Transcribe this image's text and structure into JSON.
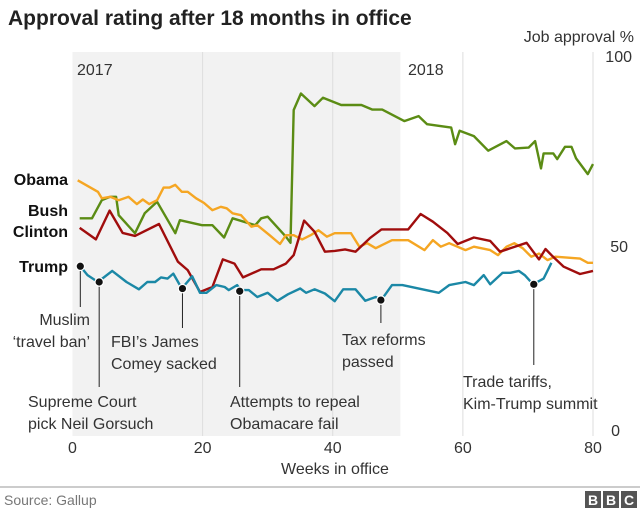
{
  "chart_data": {
    "type": "line",
    "title": "Approval rating after 18 months in office",
    "xlabel": "Weeks in office",
    "ylabel": "Job approval %",
    "xlim": [
      0,
      80
    ],
    "ylim": [
      0,
      100
    ],
    "xticks": [
      "0",
      "20",
      "40",
      "60",
      "80"
    ],
    "yticks": [
      "0",
      "50",
      "100"
    ],
    "grid": "vertical",
    "shaded_period": {
      "label": "2017",
      "from_week": 0,
      "to_week": 50.4
    },
    "period_labels": [
      "2017",
      "2018"
    ],
    "series": [
      {
        "name": "Obama",
        "color": "#f5a623",
        "points": [
          [
            0.8,
            66.6
          ],
          [
            3.9,
            63.6
          ],
          [
            4.5,
            61.9
          ],
          [
            5.8,
            62.3
          ],
          [
            7.1,
            61.4
          ],
          [
            8.6,
            62.3
          ],
          [
            9.9,
            60.4
          ],
          [
            10.8,
            61.6
          ],
          [
            11.8,
            60.4
          ],
          [
            13.0,
            61.4
          ],
          [
            14.0,
            64.7
          ],
          [
            14.9,
            64.7
          ],
          [
            15.8,
            65.4
          ],
          [
            16.8,
            63.6
          ],
          [
            17.7,
            63.6
          ],
          [
            19.0,
            61.9
          ],
          [
            20.2,
            60.7
          ],
          [
            21.5,
            58.8
          ],
          [
            22.8,
            59.7
          ],
          [
            23.7,
            59.3
          ],
          [
            24.6,
            58.0
          ],
          [
            25.9,
            57.5
          ],
          [
            27.5,
            54.5
          ],
          [
            28.4,
            54.9
          ],
          [
            30.3,
            52.3
          ],
          [
            31.9,
            50.0
          ],
          [
            32.8,
            52.3
          ],
          [
            34.0,
            52.3
          ],
          [
            35.3,
            51.2
          ],
          [
            36.6,
            52.3
          ],
          [
            37.8,
            53.6
          ],
          [
            39.1,
            51.9
          ],
          [
            40.3,
            52.8
          ],
          [
            41.6,
            52.8
          ],
          [
            42.8,
            52.8
          ],
          [
            44.1,
            49.3
          ],
          [
            45.3,
            50.2
          ],
          [
            46.6,
            48.9
          ],
          [
            49.1,
            51.0
          ],
          [
            51.6,
            51.0
          ],
          [
            54.1,
            48.4
          ],
          [
            55.4,
            51.0
          ],
          [
            56.6,
            49.3
          ],
          [
            57.9,
            50.2
          ],
          [
            60.4,
            48.4
          ],
          [
            61.7,
            49.3
          ],
          [
            64.2,
            48.4
          ],
          [
            65.4,
            47.1
          ],
          [
            66.7,
            49.3
          ],
          [
            67.9,
            50.2
          ],
          [
            69.2,
            48.9
          ],
          [
            70.5,
            46.7
          ],
          [
            71.7,
            47.5
          ],
          [
            73.0,
            45.8
          ],
          [
            74.2,
            46.7
          ],
          [
            78.0,
            46.2
          ],
          [
            79.2,
            45.1
          ],
          [
            80.0,
            45.1
          ]
        ]
      },
      {
        "name": "Bush",
        "color": "#5b8c14",
        "points": [
          [
            1.1,
            56.7
          ],
          [
            3.0,
            56.7
          ],
          [
            4.5,
            61.4
          ],
          [
            5.8,
            62.3
          ],
          [
            6.7,
            62.3
          ],
          [
            7.1,
            57.5
          ],
          [
            9.6,
            52.8
          ],
          [
            11.1,
            58.0
          ],
          [
            13.0,
            61.0
          ],
          [
            15.8,
            52.8
          ],
          [
            16.5,
            56.2
          ],
          [
            19.9,
            54.9
          ],
          [
            21.5,
            54.9
          ],
          [
            23.3,
            51.7
          ],
          [
            24.6,
            56.7
          ],
          [
            28.1,
            54.9
          ],
          [
            29.0,
            56.7
          ],
          [
            30.0,
            57.1
          ],
          [
            32.8,
            51.9
          ],
          [
            33.5,
            50.3
          ],
          [
            34.0,
            84.9
          ],
          [
            35.1,
            89.2
          ],
          [
            37.2,
            85.9
          ],
          [
            38.5,
            88.1
          ],
          [
            41.3,
            86.2
          ],
          [
            44.4,
            86.2
          ],
          [
            46.1,
            85.0
          ],
          [
            47.6,
            85.0
          ],
          [
            51.0,
            82.0
          ],
          [
            53.2,
            83.3
          ],
          [
            54.5,
            81.2
          ],
          [
            58.2,
            80.3
          ],
          [
            58.8,
            76.0
          ],
          [
            59.5,
            79.5
          ],
          [
            61.7,
            78.1
          ],
          [
            63.9,
            74.3
          ],
          [
            66.7,
            76.8
          ],
          [
            68.0,
            74.9
          ],
          [
            70.1,
            75.1
          ],
          [
            71.1,
            76.8
          ],
          [
            72.0,
            69.7
          ],
          [
            72.4,
            73.6
          ],
          [
            73.9,
            73.6
          ],
          [
            74.5,
            72.1
          ],
          [
            75.7,
            75.3
          ],
          [
            76.7,
            75.3
          ],
          [
            77.4,
            72.3
          ],
          [
            79.2,
            68.2
          ],
          [
            80.0,
            70.8
          ]
        ]
      },
      {
        "name": "Clinton",
        "color": "#a00d0d",
        "points": [
          [
            1.1,
            54.2
          ],
          [
            3.6,
            51.2
          ],
          [
            5.7,
            58.7
          ],
          [
            7.7,
            52.9
          ],
          [
            9.6,
            52.1
          ],
          [
            13.3,
            55.2
          ],
          [
            16.2,
            45.4
          ],
          [
            17.7,
            43.2
          ],
          [
            19.6,
            37.5
          ],
          [
            21.5,
            38.8
          ],
          [
            23.1,
            46.0
          ],
          [
            24.9,
            44.9
          ],
          [
            26.2,
            41.3
          ],
          [
            29.0,
            43.4
          ],
          [
            30.9,
            43.4
          ],
          [
            32.8,
            44.9
          ],
          [
            34.0,
            47.1
          ],
          [
            35.6,
            56.1
          ],
          [
            37.2,
            53.2
          ],
          [
            38.8,
            48.0
          ],
          [
            40.3,
            48.2
          ],
          [
            41.9,
            48.6
          ],
          [
            43.5,
            48.0
          ],
          [
            45.7,
            51.5
          ],
          [
            47.5,
            53.8
          ],
          [
            51.6,
            53.8
          ],
          [
            53.5,
            57.8
          ],
          [
            55.4,
            55.8
          ],
          [
            57.6,
            52.9
          ],
          [
            59.2,
            50.0
          ],
          [
            61.7,
            51.7
          ],
          [
            64.2,
            50.8
          ],
          [
            65.7,
            48.0
          ],
          [
            69.8,
            50.3
          ],
          [
            71.7,
            46.0
          ],
          [
            72.7,
            48.7
          ],
          [
            73.6,
            47.1
          ],
          [
            75.5,
            44.1
          ],
          [
            78.0,
            42.2
          ],
          [
            80.0,
            43.0
          ]
        ]
      },
      {
        "name": "Trump",
        "color": "#1b88a6",
        "points": [
          [
            1.2,
            44.2
          ],
          [
            2.3,
            41.9
          ],
          [
            3.9,
            40.1
          ],
          [
            6.1,
            43.0
          ],
          [
            8.3,
            40.1
          ],
          [
            10.2,
            38.2
          ],
          [
            11.5,
            40.1
          ],
          [
            12.7,
            40.1
          ],
          [
            13.6,
            41.3
          ],
          [
            14.6,
            41.0
          ],
          [
            15.5,
            42.3
          ],
          [
            16.8,
            38.4
          ],
          [
            18.4,
            41.6
          ],
          [
            19.6,
            37.3
          ],
          [
            20.6,
            37.3
          ],
          [
            22.1,
            39.3
          ],
          [
            23.4,
            38.8
          ],
          [
            24.0,
            38.0
          ],
          [
            25.3,
            39.3
          ],
          [
            25.9,
            38.0
          ],
          [
            27.1,
            38.0
          ],
          [
            28.4,
            36.2
          ],
          [
            30.0,
            37.3
          ],
          [
            31.5,
            35.2
          ],
          [
            33.1,
            36.9
          ],
          [
            35.0,
            38.4
          ],
          [
            35.9,
            37.3
          ],
          [
            37.2,
            38.2
          ],
          [
            38.8,
            37.1
          ],
          [
            40.3,
            35.1
          ],
          [
            41.6,
            38.2
          ],
          [
            43.5,
            38.2
          ],
          [
            45.0,
            35.2
          ],
          [
            46.6,
            36.2
          ],
          [
            47.5,
            35.5
          ],
          [
            49.1,
            39.3
          ],
          [
            50.7,
            39.3
          ],
          [
            56.3,
            37.3
          ],
          [
            57.9,
            39.3
          ],
          [
            60.4,
            40.1
          ],
          [
            61.7,
            39.3
          ],
          [
            63.2,
            41.9
          ],
          [
            64.2,
            39.5
          ],
          [
            66.1,
            42.5
          ],
          [
            67.3,
            42.5
          ],
          [
            68.6,
            43.0
          ],
          [
            69.5,
            41.9
          ],
          [
            70.8,
            39.5
          ],
          [
            72.4,
            41.0
          ],
          [
            73.6,
            45.1
          ]
        ]
      }
    ],
    "annotations": [
      {
        "week": 1.2,
        "value": 44.2,
        "lines": [
          "Muslim",
          "‘travel ban’"
        ]
      },
      {
        "week": 4.1,
        "value": 40.1,
        "lines": [
          "Supreme Court",
          "pick Neil Gorsuch"
        ]
      },
      {
        "week": 16.9,
        "value": 38.4,
        "lines": [
          "FBI’s James",
          "Comey sacked"
        ]
      },
      {
        "week": 25.7,
        "value": 37.7,
        "lines": [
          "Attempts to repeal",
          "Obamacare fail"
        ]
      },
      {
        "week": 47.4,
        "value": 35.4,
        "lines": [
          "Tax reforms",
          "passed"
        ]
      },
      {
        "week": 70.9,
        "value": 39.5,
        "lines": [
          "Trade tariffs,",
          "Kim-Trump summit"
        ]
      }
    ]
  },
  "footer": {
    "source": "Source: Gallup",
    "logo": "BBC"
  }
}
